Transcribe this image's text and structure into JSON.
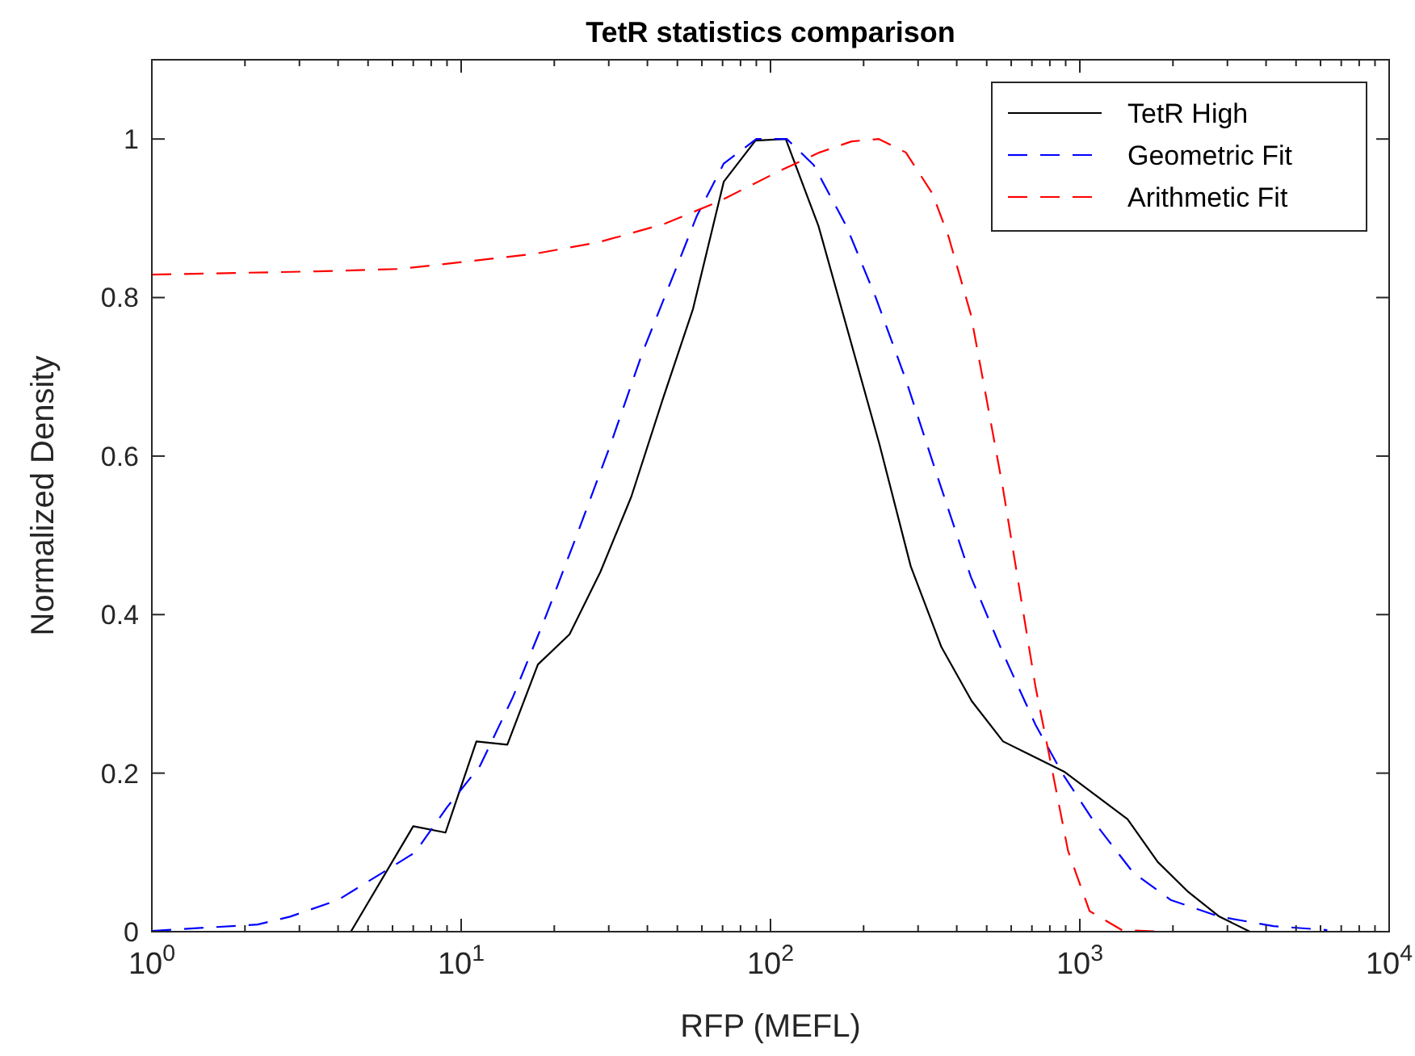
{
  "chart_data": {
    "type": "line",
    "title": "TetR statistics comparison",
    "xlabel": "RFP (MEFL)",
    "ylabel": "Normalized Density",
    "log": "x",
    "xlim": [
      1,
      10000
    ],
    "ylim": [
      0,
      1.1
    ],
    "xticks": [
      {
        "value": 1,
        "label": "10$^{0}$"
      },
      {
        "value": 2,
        "label": null
      },
      {
        "value": 3,
        "label": null
      },
      {
        "value": 4,
        "label": null
      },
      {
        "value": 5,
        "label": null
      },
      {
        "value": 6,
        "label": null
      },
      {
        "value": 7,
        "label": null
      },
      {
        "value": 8,
        "label": null
      },
      {
        "value": 9,
        "label": null
      },
      {
        "value": 10,
        "label": "10$^{1}$"
      },
      {
        "value": 20,
        "label": null
      },
      {
        "value": 30,
        "label": null
      },
      {
        "value": 40,
        "label": null
      },
      {
        "value": 50,
        "label": null
      },
      {
        "value": 60,
        "label": null
      },
      {
        "value": 70,
        "label": null
      },
      {
        "value": 80,
        "label": null
      },
      {
        "value": 90,
        "label": null
      },
      {
        "value": 100,
        "label": "10$^{2}$"
      },
      {
        "value": 200,
        "label": null
      },
      {
        "value": 300,
        "label": null
      },
      {
        "value": 400,
        "label": null
      },
      {
        "value": 500,
        "label": null
      },
      {
        "value": 600,
        "label": null
      },
      {
        "value": 700,
        "label": null
      },
      {
        "value": 800,
        "label": null
      },
      {
        "value": 900,
        "label": null
      },
      {
        "value": 1000,
        "label": "10$^{3}$"
      },
      {
        "value": 2000,
        "label": null
      },
      {
        "value": 3000,
        "label": null
      },
      {
        "value": 4000,
        "label": null
      },
      {
        "value": 5000,
        "label": null
      },
      {
        "value": 6000,
        "label": null
      },
      {
        "value": 7000,
        "label": null
      },
      {
        "value": 8000,
        "label": null
      },
      {
        "value": 9000,
        "label": null
      },
      {
        "value": 10000,
        "label": "10$^{4}$"
      }
    ],
    "yticks": [
      0,
      0.2,
      0.4,
      0.6,
      0.8,
      1
    ],
    "grid": false,
    "legend": "top right",
    "marker": "none",
    "series": [
      {
        "name": "TetR High",
        "color": "#000000",
        "line_style": "solid",
        "x": [
          1,
          4.4,
          7.0,
          8.9,
          11.2,
          14.1,
          17.7,
          22.4,
          28.2,
          35.5,
          44.7,
          56.2,
          70.6,
          89.4,
          112,
          143,
          225,
          284,
          357,
          447,
          565,
          889,
          1426,
          1786,
          2244,
          2825,
          3548,
          10000
        ],
        "values": [
          0,
          0,
          0.133,
          0.125,
          0.24,
          0.236,
          0.337,
          0.375,
          0.454,
          0.549,
          0.67,
          0.786,
          0.946,
          0.998,
          1.0,
          0.89,
          0.615,
          0.461,
          0.359,
          0.291,
          0.24,
          0.202,
          0.142,
          0.088,
          0.05,
          0.019,
          0,
          0
        ]
      },
      {
        "name": "Geometric Fit",
        "color": "#0000ff",
        "line_style": "dashed",
        "x": [
          1,
          2.2,
          2.8,
          4.0,
          5.6,
          7.1,
          9.0,
          11.5,
          14.7,
          18.7,
          23.8,
          30.3,
          38.6,
          49.2,
          57.8,
          70.6,
          90,
          113,
          138,
          176,
          219,
          274,
          348,
          444,
          565,
          719,
          880,
          1119,
          1484,
          1966,
          2825,
          4227,
          6310
        ],
        "values": [
          0.001,
          0.009,
          0.019,
          0.04,
          0.075,
          0.1,
          0.157,
          0.209,
          0.296,
          0.396,
          0.503,
          0.613,
          0.731,
          0.834,
          0.903,
          0.969,
          1.0,
          1.0,
          0.967,
          0.89,
          0.8,
          0.696,
          0.572,
          0.448,
          0.351,
          0.261,
          0.199,
          0.137,
          0.075,
          0.04,
          0.019,
          0.007,
          0.002
        ]
      },
      {
        "name": "Arithmetic Fit",
        "color": "#ff0000",
        "line_style": "dashed",
        "x": [
          1,
          3.4,
          6.3,
          10.2,
          17.2,
          28,
          45.4,
          67.9,
          106,
          144,
          183,
          224,
          274,
          334,
          377,
          444,
          501,
          565,
          637,
          719,
          812,
          916,
          1075,
          1368,
          1888
        ],
        "values": [
          0.829,
          0.833,
          0.836,
          0.845,
          0.855,
          0.87,
          0.893,
          0.921,
          0.959,
          0.983,
          0.997,
          1.0,
          0.983,
          0.931,
          0.876,
          0.779,
          0.669,
          0.558,
          0.434,
          0.309,
          0.206,
          0.102,
          0.026,
          0.002,
          0
        ]
      }
    ]
  }
}
